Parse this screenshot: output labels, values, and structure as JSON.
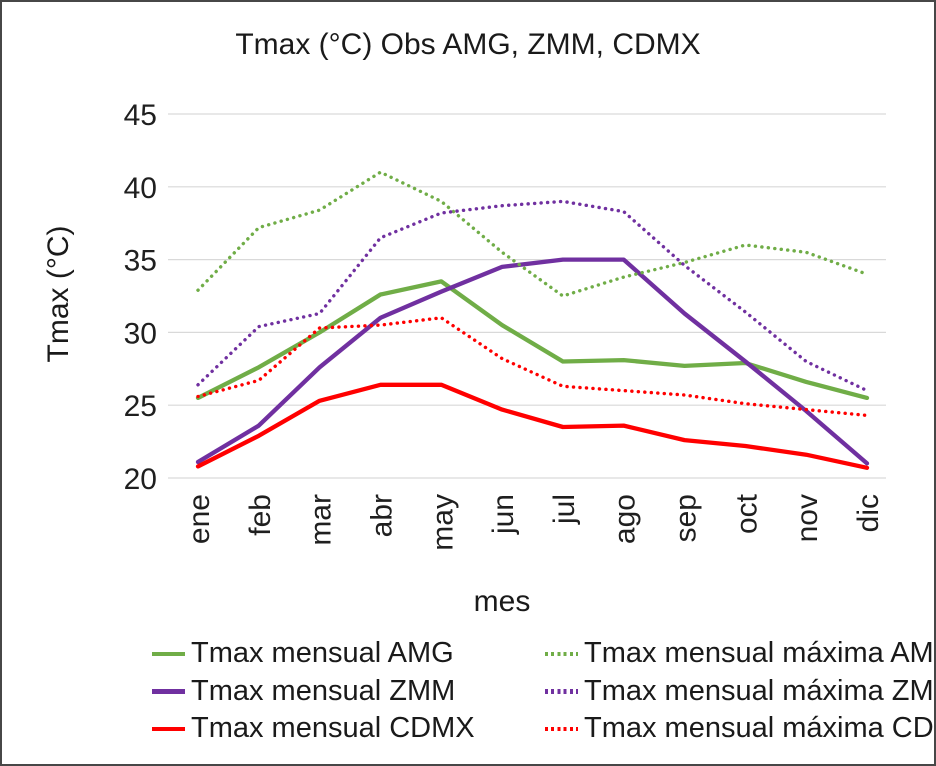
{
  "chart_data": {
    "type": "line",
    "title": "Tmax (°C) Obs AMG, ZMM, CDMX",
    "xlabel": "mes",
    "ylabel": "Tmax (°C)",
    "categories": [
      "ene",
      "feb",
      "mar",
      "abr",
      "may",
      "jun",
      "jul",
      "ago",
      "sep",
      "oct",
      "nov",
      "dic"
    ],
    "y_ticks": [
      20,
      25,
      30,
      35,
      40,
      45
    ],
    "ylim": [
      20,
      45
    ],
    "grid": true,
    "grid_color": "#D9D9D9",
    "legend_position": "bottom",
    "series": [
      {
        "name": "Tmax mensual AMG",
        "color": "#70AD47",
        "style": "solid",
        "values": [
          25.5,
          27.6,
          30.0,
          32.6,
          33.5,
          30.5,
          28.0,
          28.1,
          27.7,
          27.9,
          26.6,
          25.5
        ]
      },
      {
        "name": "Tmax mensual ZMM",
        "color": "#7030A0",
        "style": "solid",
        "values": [
          21.1,
          23.6,
          27.6,
          31.0,
          32.8,
          34.5,
          35.0,
          35.0,
          31.3,
          28.0,
          24.6,
          21.0
        ]
      },
      {
        "name": "Tmax mensual CDMX",
        "color": "#FF0000",
        "style": "solid",
        "values": [
          20.8,
          22.9,
          25.3,
          26.4,
          26.4,
          24.7,
          23.5,
          23.6,
          22.6,
          22.2,
          21.6,
          20.7
        ]
      },
      {
        "name": "Tmax mensual máxima AMG",
        "color": "#70AD47",
        "style": "dotted",
        "values": [
          32.9,
          37.2,
          38.4,
          41.0,
          39.0,
          35.5,
          32.5,
          33.8,
          34.8,
          36.0,
          35.5,
          34.0
        ]
      },
      {
        "name": "Tmax mensual máxima ZMM",
        "color": "#7030A0",
        "style": "dotted",
        "values": [
          26.4,
          30.4,
          31.3,
          36.5,
          38.2,
          38.7,
          39.0,
          38.3,
          34.6,
          31.4,
          28.0,
          26.0
        ]
      },
      {
        "name": "Tmax mensual máxima CDMX",
        "color": "#FF0000",
        "style": "dotted",
        "values": [
          25.6,
          26.7,
          30.3,
          30.5,
          31.0,
          28.2,
          26.3,
          26.0,
          25.7,
          25.1,
          24.7,
          24.3
        ]
      }
    ]
  }
}
